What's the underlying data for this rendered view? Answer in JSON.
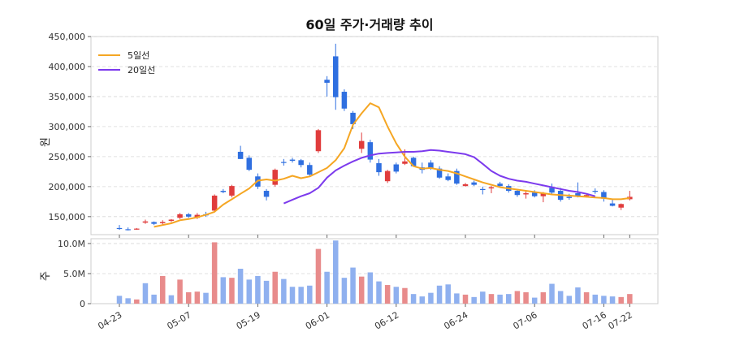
{
  "chart_data": [
    {
      "type": "candlestick",
      "title": "60일 주가·거래량 추이",
      "ylabel": "원",
      "ylim": [
        120000,
        450000
      ],
      "yticks": [
        150000,
        200000,
        250000,
        300000,
        350000,
        400000,
        450000
      ],
      "ytick_labels": [
        "150,000",
        "200,000",
        "250,000",
        "300,000",
        "350,000",
        "400,000",
        "450,000"
      ],
      "grid": true,
      "legend_position": "top-left",
      "colors": {
        "up": "#e03c3c",
        "down": "#2f6fe0",
        "ma5": "#f5a623",
        "ma20": "#7c3aed"
      },
      "series": [
        {
          "name": "5일선",
          "start_index": 4,
          "values": [
            133000,
            136000,
            139000,
            144000,
            146000,
            149000,
            153000,
            158000,
            170000,
            179000,
            188000,
            197000,
            210000,
            212000,
            210000,
            213000,
            218000,
            214000,
            217000,
            224000,
            231000,
            244000,
            264000,
            303000,
            322000,
            339000,
            332000,
            300000,
            272000,
            250000,
            234000,
            230000,
            231000,
            228000,
            226000,
            222000,
            217000,
            212000,
            207000,
            203000,
            199000,
            197000,
            195000,
            193000,
            191000,
            189000,
            187000,
            186000,
            185000,
            184000,
            183000,
            182000,
            181000,
            179000,
            179000,
            181000
          ]
        },
        {
          "name": "20일선",
          "start_index": 19,
          "values": [
            172000,
            178000,
            184000,
            189000,
            198000,
            215000,
            227000,
            235000,
            242000,
            248000,
            252000,
            255000,
            256000,
            257000,
            258000,
            258000,
            259000,
            261000,
            260000,
            258000,
            256000,
            254000,
            249000,
            238000,
            226000,
            218000,
            213000,
            210000,
            208000,
            205000,
            202000,
            199000,
            196000,
            193000,
            191000,
            188000,
            184000
          ]
        }
      ],
      "ohlc": [
        [
          131000,
          136000,
          128000,
          130000
        ],
        [
          129000,
          132000,
          127000,
          128000
        ],
        [
          129000,
          131000,
          128000,
          130000
        ],
        [
          140000,
          145000,
          138000,
          142000
        ],
        [
          141000,
          142000,
          136000,
          138000
        ],
        [
          139000,
          144000,
          136000,
          141000
        ],
        [
          143000,
          146000,
          141000,
          145000
        ],
        [
          148000,
          156000,
          146000,
          154000
        ],
        [
          154000,
          156000,
          148000,
          150000
        ],
        [
          148000,
          156000,
          146000,
          153000
        ],
        [
          154000,
          158000,
          150000,
          152000
        ],
        [
          160000,
          187000,
          158000,
          185000
        ],
        [
          193000,
          196000,
          189000,
          191000
        ],
        [
          185000,
          203000,
          182000,
          201000
        ],
        [
          258000,
          268000,
          246000,
          246000
        ],
        [
          248000,
          252000,
          226000,
          228000
        ],
        [
          217000,
          222000,
          196000,
          200000
        ],
        [
          193000,
          196000,
          177000,
          183000
        ],
        [
          203000,
          230000,
          200000,
          228000
        ],
        [
          241000,
          246000,
          235000,
          240000
        ],
        [
          245000,
          248000,
          240000,
          243000
        ],
        [
          244000,
          246000,
          232000,
          236000
        ],
        [
          236000,
          240000,
          216000,
          220000
        ],
        [
          259000,
          296000,
          256000,
          294000
        ],
        [
          378000,
          384000,
          350000,
          373000
        ],
        [
          417000,
          438000,
          328000,
          349000
        ],
        [
          358000,
          362000,
          326000,
          330000
        ],
        [
          323000,
          326000,
          296000,
          304000
        ],
        [
          263000,
          290000,
          256000,
          276000
        ],
        [
          274000,
          278000,
          240000,
          245000
        ],
        [
          239000,
          246000,
          218000,
          224000
        ],
        [
          209000,
          228000,
          206000,
          226000
        ],
        [
          237000,
          240000,
          222000,
          225000
        ],
        [
          238000,
          262000,
          236000,
          242000
        ],
        [
          248000,
          250000,
          233000,
          234000
        ],
        [
          232000,
          240000,
          222000,
          228000
        ],
        [
          240000,
          244000,
          228000,
          230000
        ],
        [
          230000,
          234000,
          213000,
          215000
        ],
        [
          217000,
          222000,
          209000,
          211000
        ],
        [
          226000,
          230000,
          203000,
          205000
        ],
        [
          201000,
          206000,
          200000,
          204000
        ],
        [
          207000,
          210000,
          201000,
          203000
        ],
        [
          196000,
          200000,
          187000,
          195000
        ],
        [
          197000,
          201000,
          189000,
          199000
        ],
        [
          205000,
          208000,
          199000,
          201000
        ],
        [
          201000,
          204000,
          190000,
          193000
        ],
        [
          193000,
          195000,
          183000,
          186000
        ],
        [
          187000,
          194000,
          180000,
          189000
        ],
        [
          190000,
          194000,
          182000,
          184000
        ],
        [
          184000,
          191000,
          174000,
          189000
        ],
        [
          198000,
          205000,
          186000,
          190000
        ],
        [
          193000,
          198000,
          175000,
          178000
        ],
        [
          183000,
          188000,
          178000,
          181000
        ],
        [
          189000,
          207000,
          182000,
          183000
        ],
        [
          185000,
          188000,
          182000,
          186000
        ],
        [
          193000,
          197000,
          188000,
          192000
        ],
        [
          191000,
          194000,
          175000,
          180000
        ],
        [
          172000,
          178000,
          167000,
          168000
        ],
        [
          165000,
          172000,
          161000,
          171000
        ],
        [
          179000,
          193000,
          177000,
          183000
        ]
      ]
    },
    {
      "type": "bar",
      "ylabel": "주",
      "ylim": [
        0,
        10800000
      ],
      "yticks": [
        0,
        5000000,
        10000000
      ],
      "ytick_labels": [
        "0",
        "5.0M",
        "10.0M"
      ],
      "categories_x_ticks": [
        "04-23",
        "05-07",
        "05-19",
        "06-01",
        "06-12",
        "06-24",
        "07-06",
        "07-16",
        "07-22"
      ],
      "x_tick_index": [
        0,
        8,
        16,
        24,
        32,
        40,
        48,
        56,
        59
      ],
      "values": [
        1300000,
        900000,
        700000,
        3400000,
        1500000,
        4600000,
        1400000,
        4000000,
        1900000,
        2000000,
        1800000,
        10200000,
        4400000,
        4300000,
        5800000,
        4000000,
        4600000,
        3800000,
        5300000,
        4100000,
        2800000,
        2800000,
        3000000,
        9100000,
        5300000,
        10500000,
        4300000,
        6000000,
        4500000,
        5200000,
        3700000,
        3100000,
        2800000,
        2600000,
        1600000,
        1200000,
        1800000,
        3000000,
        3200000,
        1700000,
        1500000,
        1100000,
        2000000,
        1600000,
        1500000,
        1600000,
        2100000,
        1900000,
        1000000,
        1900000,
        3300000,
        2100000,
        1300000,
        2700000,
        1900000,
        1500000,
        1300000,
        1200000,
        1100000,
        1600000
      ],
      "up": [
        0,
        0,
        1,
        0,
        0,
        1,
        0,
        1,
        1,
        1,
        0,
        1,
        0,
        1,
        0,
        0,
        0,
        0,
        1,
        0,
        0,
        0,
        0,
        1,
        0,
        0,
        0,
        0,
        1,
        0,
        0,
        1,
        0,
        1,
        0,
        0,
        0,
        0,
        0,
        0,
        1,
        0,
        0,
        1,
        0,
        0,
        1,
        1,
        0,
        1,
        0,
        0,
        0,
        0,
        1,
        0,
        0,
        0,
        1,
        1
      ]
    }
  ]
}
